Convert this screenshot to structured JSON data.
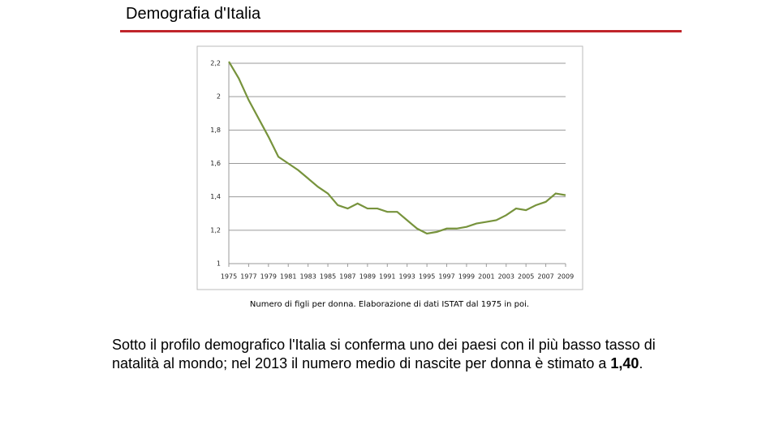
{
  "header": {
    "title": "Demografia d'Italia"
  },
  "chart_data": {
    "type": "line",
    "x": [
      1975,
      1976,
      1977,
      1978,
      1979,
      1980,
      1981,
      1982,
      1983,
      1984,
      1985,
      1986,
      1987,
      1988,
      1989,
      1990,
      1991,
      1992,
      1993,
      1994,
      1995,
      1996,
      1997,
      1998,
      1999,
      2000,
      2001,
      2002,
      2003,
      2004,
      2005,
      2006,
      2007,
      2008,
      2009
    ],
    "values": [
      2.21,
      2.11,
      1.98,
      1.87,
      1.76,
      1.64,
      1.6,
      1.56,
      1.51,
      1.46,
      1.42,
      1.35,
      1.33,
      1.36,
      1.33,
      1.33,
      1.31,
      1.31,
      1.26,
      1.21,
      1.18,
      1.19,
      1.21,
      1.21,
      1.22,
      1.24,
      1.25,
      1.26,
      1.29,
      1.33,
      1.32,
      1.35,
      1.37,
      1.42,
      1.41
    ],
    "color": "#77933c",
    "xlim": [
      1975,
      2009
    ],
    "xticks": [
      1975,
      1977,
      1979,
      1981,
      1983,
      1985,
      1987,
      1989,
      1991,
      1993,
      1995,
      1997,
      1999,
      2001,
      2003,
      2005,
      2007,
      2009
    ],
    "ylim": [
      1,
      2.2
    ],
    "yticks": [
      1,
      {
        "value": 1.2,
        "label": "1,2"
      },
      {
        "value": 1.4,
        "label": "1,4"
      },
      {
        "value": 1.6,
        "label": "1,6"
      },
      {
        "value": 1.8,
        "label": "1,8"
      },
      2,
      {
        "value": 2.2,
        "label": "2,2"
      }
    ],
    "grid": true
  },
  "caption": "Numero di figli per donna. Elaborazione di dati ISTAT dal 1975 in poi.",
  "body": {
    "text": "Sotto il profilo demografico l'Italia si conferma uno dei paesi con il più basso tasso di natalità al mondo; nel 2013 il numero medio di nascite per donna è stimato a ",
    "bold": "1,40",
    "end": "."
  }
}
